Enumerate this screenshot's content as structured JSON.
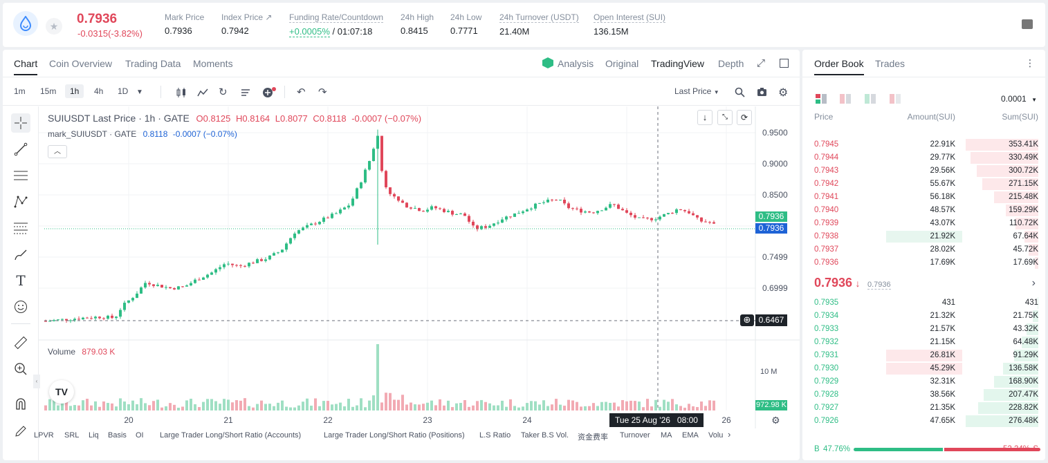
{
  "header": {
    "last_price": "0.7936",
    "change": "-0.0315(-3.82%)",
    "stats": [
      {
        "label": "Mark Price",
        "value": "0.7936",
        "underline": false
      },
      {
        "label": "Index Price ↗",
        "value": "0.7942",
        "underline": false
      },
      {
        "label": "Funding Rate/Countdown",
        "value_green": "+0.0005%",
        "value": " / 01:07:18",
        "underline": true
      },
      {
        "label": "24h High",
        "value": "0.8415",
        "underline": false
      },
      {
        "label": "24h Low",
        "value": "0.7771",
        "underline": false
      },
      {
        "label": "24h Turnover (USDT)",
        "value": "21.40M",
        "underline": true
      },
      {
        "label": "Open Interest (SUI)",
        "value": "136.15M",
        "underline": true
      }
    ]
  },
  "chart_tabs": [
    "Chart",
    "Coin Overview",
    "Trading Data",
    "Moments"
  ],
  "view_tabs": {
    "analysis": "Analysis",
    "original": "Original",
    "tradingview": "TradingView",
    "depth": "Depth"
  },
  "timeframes": [
    "1m",
    "15m",
    "1h",
    "4h",
    "1D"
  ],
  "last_price_select": "Last Price",
  "legend": {
    "symbol": "SUIUSDT Last Price · 1h · GATE",
    "o": "O0.8125",
    "h": "H0.8164",
    "l": "L0.8077",
    "c": "C0.8118",
    "chg": "-0.0007 (−0.07%)",
    "mark": "mark_SUIUSDT · GATE",
    "mark_val": "0.8118",
    "mark_chg": "-0.0007 (−0.07%)"
  },
  "price_axis": [
    "0.9500",
    "0.9000",
    "0.8500",
    "0.7499",
    "0.6999"
  ],
  "price_tags": {
    "last": "0.7936",
    "mark": "0.7936",
    "cursor": "0.6467"
  },
  "volume": {
    "label": "Volume",
    "value": "879.03 K",
    "axis": "10 M",
    "tag": "972.98 K"
  },
  "x_axis": [
    "20",
    "21",
    "22",
    "23",
    "24",
    "26"
  ],
  "crosshair_time": "Tue 25 Aug '26   08:00",
  "bottom_indicators": [
    "LPVR",
    "SRL",
    "Liq",
    "Basis",
    "OI",
    "Large Trader Long/Short Ratio (Accounts)",
    "Large Trader Long/Short Ratio (Positions)",
    "L.S Ratio",
    "Taker B.S Vol.",
    "资金费率",
    "Turnover",
    "MA",
    "EMA",
    "Volu"
  ],
  "orderbook": {
    "tabs": [
      "Order Book",
      "Trades"
    ],
    "precision": "0.0001",
    "headers": {
      "price": "Price",
      "amount": "Amount(SUI)",
      "sum": "Sum(SUI)"
    },
    "asks": [
      {
        "price": "0.7945",
        "amount": "22.91K",
        "sum": "353.41K",
        "depth": 1.0
      },
      {
        "price": "0.7944",
        "amount": "29.77K",
        "sum": "330.49K",
        "depth": 0.93
      },
      {
        "price": "0.7943",
        "amount": "29.56K",
        "sum": "300.72K",
        "depth": 0.85
      },
      {
        "price": "0.7942",
        "amount": "55.67K",
        "sum": "271.15K",
        "depth": 0.77
      },
      {
        "price": "0.7941",
        "amount": "56.18K",
        "sum": "215.48K",
        "depth": 0.61
      },
      {
        "price": "0.7940",
        "amount": "48.57K",
        "sum": "159.29K",
        "depth": 0.45
      },
      {
        "price": "0.7939",
        "amount": "43.07K",
        "sum": "110.72K",
        "depth": 0.31
      },
      {
        "price": "0.7938",
        "amount": "21.92K",
        "sum": "67.64K",
        "depth": 0.19
      },
      {
        "price": "0.7937",
        "amount": "28.02K",
        "sum": "45.72K",
        "depth": 0.13
      },
      {
        "price": "0.7936",
        "amount": "17.69K",
        "sum": "17.69K",
        "depth": 0.05
      }
    ],
    "mid_price": "0.7936",
    "mid_arrow": "↓",
    "mid_mark": "0.7936",
    "bids": [
      {
        "price": "0.7935",
        "amount": "431",
        "sum": "431",
        "depth": 0.01
      },
      {
        "price": "0.7934",
        "amount": "21.32K",
        "sum": "21.75K",
        "depth": 0.08
      },
      {
        "price": "0.7933",
        "amount": "21.57K",
        "sum": "43.32K",
        "depth": 0.16
      },
      {
        "price": "0.7932",
        "amount": "21.15K",
        "sum": "64.48K",
        "depth": 0.23
      },
      {
        "price": "0.7931",
        "amount": "26.81K",
        "sum": "91.29K",
        "depth": 0.33
      },
      {
        "price": "0.7930",
        "amount": "45.29K",
        "sum": "136.58K",
        "depth": 0.49
      },
      {
        "price": "0.7929",
        "amount": "32.31K",
        "sum": "168.90K",
        "depth": 0.61
      },
      {
        "price": "0.7928",
        "amount": "38.56K",
        "sum": "207.47K",
        "depth": 0.75
      },
      {
        "price": "0.7927",
        "amount": "21.35K",
        "sum": "228.82K",
        "depth": 0.83
      },
      {
        "price": "0.7926",
        "amount": "47.65K",
        "sum": "276.48K",
        "depth": 1.0
      }
    ],
    "buy_ratio": "47.76%",
    "sell_ratio": "52.24%",
    "buy_label": "B",
    "sell_label": "S"
  },
  "colors": {
    "up": "#2ebd85",
    "down": "#e0475a",
    "mark_blue": "#1e63d6"
  }
}
